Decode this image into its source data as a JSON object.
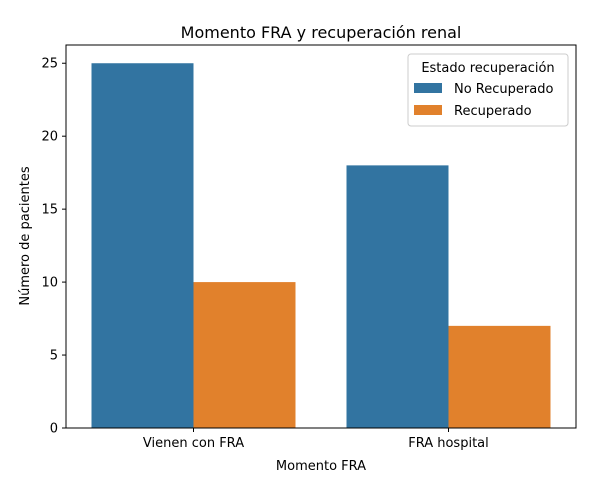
{
  "chart_data": {
    "type": "bar",
    "title": "Momento FRA y recuperación renal",
    "xlabel": "Momento FRA",
    "ylabel": "Número de pacientes",
    "categories": [
      "Vienen con FRA",
      "FRA hospital"
    ],
    "series": [
      {
        "name": "No Recuperado",
        "values": [
          25,
          18
        ],
        "color": "#3274a1"
      },
      {
        "name": "Recuperado",
        "values": [
          10,
          7
        ],
        "color": "#e1812c"
      }
    ],
    "ylim": [
      0,
      26.25
    ],
    "yticks": [
      0,
      5,
      10,
      15,
      20,
      25
    ],
    "grid": false,
    "legend": {
      "title": "Estado recuperación",
      "placement": "top-right"
    }
  }
}
